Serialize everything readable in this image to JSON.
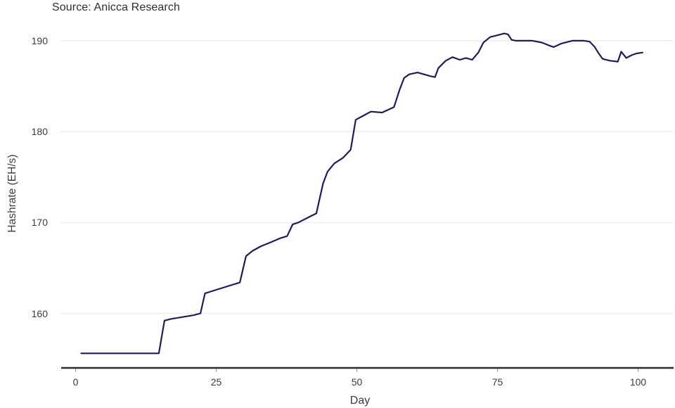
{
  "header": {
    "source_label": "Source: Anicca Research"
  },
  "chart_data": {
    "type": "line",
    "source": "Source: Anicca Research",
    "xlabel": "Day",
    "ylabel": "Hashrate (EH/s)",
    "x_ticks": [
      0,
      25,
      50,
      75,
      100
    ],
    "y_ticks": [
      190,
      180,
      170,
      160
    ],
    "xlim": [
      -2.7,
      106.2
    ],
    "ylim": [
      154,
      192.2
    ],
    "grid": "horizontal-only",
    "legend": "none",
    "colors": {
      "line": "#1f1c5b",
      "gridline": "#e9e9e9",
      "axis": "#2d2d2d",
      "tick_text": "#3c3c3c"
    },
    "series": [
      {
        "name": "Hashrate (EH/s)",
        "points": [
          [
            1,
            155.6
          ],
          [
            14.8,
            155.6
          ],
          [
            15.8,
            159.2
          ],
          [
            17,
            159.4
          ],
          [
            19,
            159.6
          ],
          [
            21,
            159.8
          ],
          [
            22.2,
            160.0
          ],
          [
            23,
            162.2
          ],
          [
            24,
            162.4
          ],
          [
            26.6,
            162.9
          ],
          [
            29.2,
            163.4
          ],
          [
            30.3,
            166.3
          ],
          [
            31.5,
            166.9
          ],
          [
            33,
            167.4
          ],
          [
            35,
            167.9
          ],
          [
            36.5,
            168.3
          ],
          [
            37.6,
            168.5
          ],
          [
            38.6,
            169.8
          ],
          [
            39.6,
            170.0
          ],
          [
            41.5,
            170.6
          ],
          [
            42.8,
            171.0
          ],
          [
            44,
            174.3
          ],
          [
            44.8,
            175.6
          ],
          [
            46,
            176.5
          ],
          [
            47.5,
            177.1
          ],
          [
            48.9,
            178.0
          ],
          [
            49.8,
            181.3
          ],
          [
            51,
            181.7
          ],
          [
            52.5,
            182.2
          ],
          [
            54.5,
            182.1
          ],
          [
            56.6,
            182.7
          ],
          [
            57.6,
            184.6
          ],
          [
            58.4,
            185.9
          ],
          [
            59.3,
            186.3
          ],
          [
            60.8,
            186.5
          ],
          [
            63.1,
            186.1
          ],
          [
            63.9,
            186.0
          ],
          [
            64.5,
            187.0
          ],
          [
            65.8,
            187.8
          ],
          [
            67,
            188.2
          ],
          [
            68.3,
            187.9
          ],
          [
            69.4,
            188.1
          ],
          [
            70.5,
            187.9
          ],
          [
            71.6,
            188.7
          ],
          [
            72.5,
            189.8
          ],
          [
            73.7,
            190.4
          ],
          [
            75,
            190.6
          ],
          [
            76.2,
            190.8
          ],
          [
            76.9,
            190.7
          ],
          [
            77.5,
            190.1
          ],
          [
            78.3,
            190.0
          ],
          [
            81.2,
            190.0
          ],
          [
            82.9,
            189.8
          ],
          [
            84.1,
            189.5
          ],
          [
            85,
            189.3
          ],
          [
            86.4,
            189.7
          ],
          [
            88.3,
            190.0
          ],
          [
            90.4,
            190.0
          ],
          [
            91.4,
            189.9
          ],
          [
            92.3,
            189.3
          ],
          [
            92.9,
            188.7
          ],
          [
            93.7,
            188.0
          ],
          [
            95,
            187.8
          ],
          [
            96.4,
            187.7
          ],
          [
            97,
            188.8
          ],
          [
            97.9,
            188.1
          ],
          [
            98.8,
            188.4
          ],
          [
            99.7,
            188.6
          ],
          [
            100.8,
            188.7
          ]
        ]
      }
    ]
  }
}
